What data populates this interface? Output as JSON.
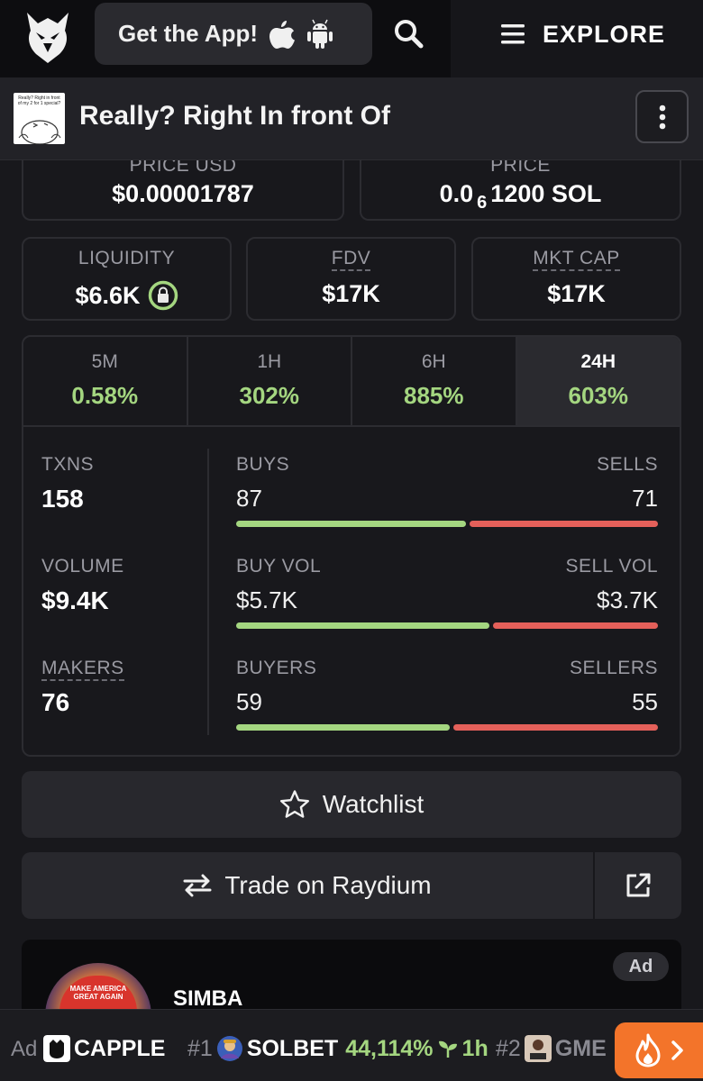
{
  "header": {
    "get_app_label": "Get the App!",
    "explore_label": "EXPLORE"
  },
  "token": {
    "name": "Really? Right In front Of",
    "thumb_text": "Really? Right in front of my 2 for 1 special?"
  },
  "prices": {
    "usd_label": "PRICE USD",
    "usd_value": "$0.00001787",
    "native_label": "PRICE",
    "native_prefix": "0.0",
    "native_sub": "6",
    "native_suffix": "1200 SOL"
  },
  "stats": {
    "liquidity_label": "LIQUIDITY",
    "liquidity_value": "$6.6K",
    "fdv_label": "FDV",
    "fdv_value": "$17K",
    "mcap_label": "MKT CAP",
    "mcap_value": "$17K"
  },
  "timeframes": [
    {
      "label": "5M",
      "value": "0.58%"
    },
    {
      "label": "1H",
      "value": "302%"
    },
    {
      "label": "6H",
      "value": "885%"
    },
    {
      "label": "24H",
      "value": "603%"
    }
  ],
  "active_timeframe": "24H",
  "metrics": {
    "txns": {
      "label": "TXNS",
      "value": "158",
      "left_label": "BUYS",
      "left_value": "87",
      "right_label": "SELLS",
      "right_value": "71",
      "buy_fraction": 0.55
    },
    "volume": {
      "label": "VOLUME",
      "value": "$9.4K",
      "left_label": "BUY VOL",
      "left_value": "$5.7K",
      "right_label": "SELL VOL",
      "right_value": "$3.7K",
      "buy_fraction": 0.605
    },
    "makers": {
      "label": "MAKERS",
      "value": "76",
      "left_label": "BUYERS",
      "left_value": "59",
      "right_label": "SELLERS",
      "right_value": "55",
      "buy_fraction": 0.51
    }
  },
  "actions": {
    "watchlist_label": "Watchlist",
    "trade_label": "Trade on Raydium"
  },
  "ad_card": {
    "badge": "Ad",
    "name": "SIMBA",
    "hat_text": "MAKE AMERICA GREAT AGAIN"
  },
  "ticker": {
    "ad_label": "Ad",
    "ad_token": "CAPPLE",
    "items": [
      {
        "rank": "#1",
        "name": "SOLBET",
        "change": "44,114%",
        "age": "1h"
      },
      {
        "rank": "#2",
        "name": "GME"
      }
    ]
  },
  "colors": {
    "positive": "#a4d680",
    "negative": "#e4605a",
    "accent": "#f3742a",
    "background": "#18181c"
  },
  "icons": [
    "eagle-logo-icon",
    "apple-icon",
    "android-icon",
    "search-icon",
    "hamburger-icon",
    "kebab-menu-icon",
    "lock-icon",
    "star-icon",
    "swap-arrows-icon",
    "external-link-icon",
    "sprout-icon",
    "fire-icon",
    "chevron-right-icon"
  ]
}
